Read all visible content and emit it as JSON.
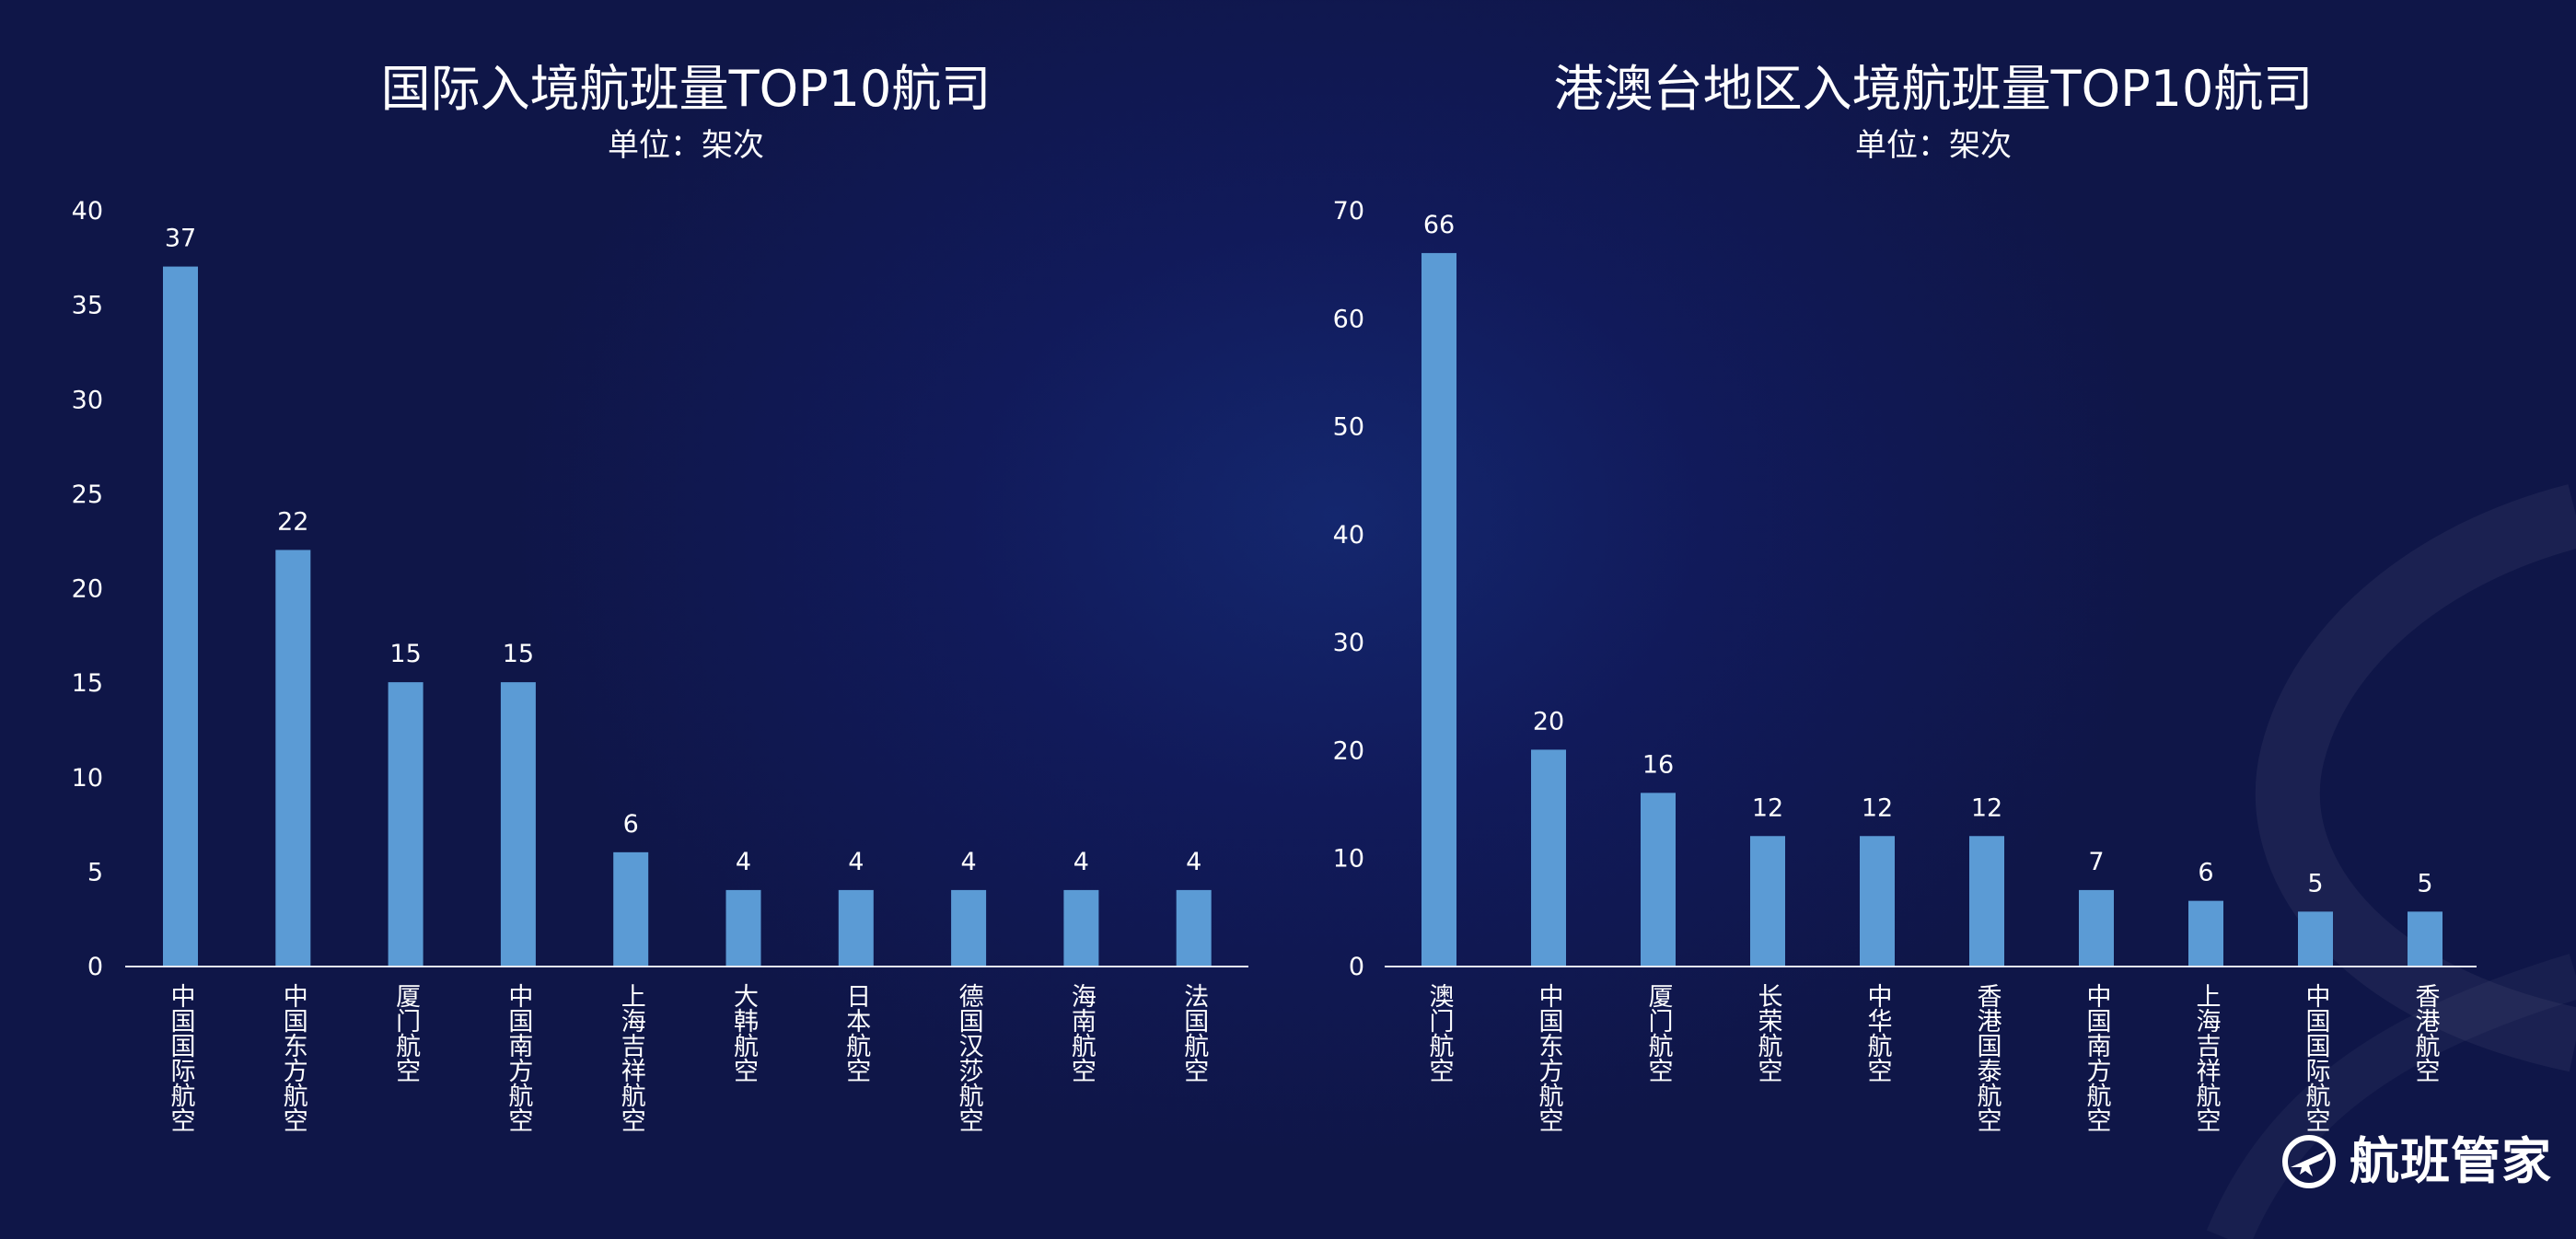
{
  "chart_data": [
    {
      "type": "bar",
      "title": "国际入境航班量TOP10航司",
      "subtitle": "单位：架次",
      "categories": [
        "中国国际航空",
        "中国东方航空",
        "厦门航空",
        "中国南方航空",
        "上海吉祥航空",
        "大韩航空",
        "日本航空",
        "德国汉莎航空",
        "海南航空",
        "法国航空"
      ],
      "values": [
        37,
        22,
        15,
        15,
        6,
        4,
        4,
        4,
        4,
        4
      ],
      "ylim": [
        0,
        40
      ],
      "yticks": [
        0,
        5,
        10,
        15,
        20,
        25,
        30,
        35,
        40
      ],
      "grid": false,
      "bar_color": "#5b9bd5"
    },
    {
      "type": "bar",
      "title": "港澳台地区入境航班量TOP10航司",
      "subtitle": "单位：架次",
      "categories": [
        "澳门航空",
        "中国东方航空",
        "厦门航空",
        "长荣航空",
        "中华航空",
        "香港国泰航空",
        "中国南方航空",
        "上海吉祥航空",
        "中国国际航空",
        "香港航空"
      ],
      "values": [
        66,
        20,
        16,
        12,
        12,
        12,
        7,
        6,
        5,
        5
      ],
      "ylim": [
        0,
        70
      ],
      "yticks": [
        0,
        10,
        20,
        30,
        40,
        50,
        60,
        70
      ],
      "grid": false,
      "bar_color": "#5b9bd5"
    }
  ],
  "logo": {
    "text": "航班管家",
    "icon": "airplane-logo-icon"
  }
}
